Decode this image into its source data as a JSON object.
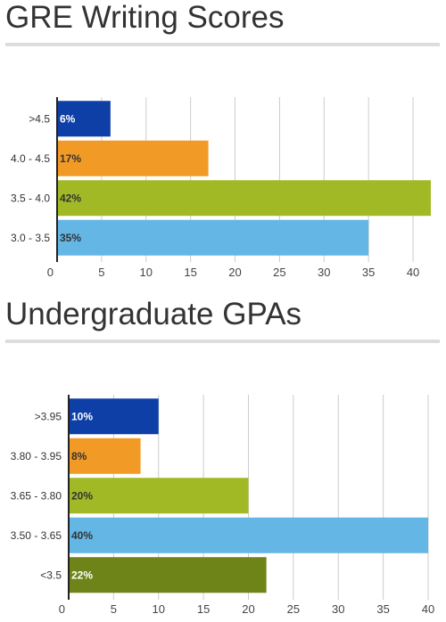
{
  "charts": [
    {
      "heading": "GRE Writing Scores",
      "chart_data": {
        "type": "bar",
        "orientation": "horizontal",
        "title": "GRE Writing Scores",
        "categories": [
          ">4.5",
          "4.0 - 4.5",
          "3.5 - 4.0",
          "3.0 - 3.5"
        ],
        "values": [
          6,
          17,
          42,
          35
        ],
        "data_labels": [
          "6%",
          "17%",
          "42%",
          "35%"
        ],
        "colors": [
          "#0d3fa6",
          "#f29a26",
          "#a2b926",
          "#64b6e5"
        ],
        "label_colors": [
          "#ffffff",
          "#333333",
          "#333333",
          "#333333"
        ],
        "xlim": [
          0,
          42
        ],
        "x_ticks": [
          0,
          5,
          10,
          15,
          20,
          25,
          30,
          35,
          40
        ],
        "grid": true
      }
    },
    {
      "heading": "Undergraduate GPAs",
      "chart_data": {
        "type": "bar",
        "orientation": "horizontal",
        "title": "Undergraduate GPAs",
        "categories": [
          ">3.95",
          "3.80 - 3.95",
          "3.65 - 3.80",
          "3.50 - 3.65",
          "<3.5"
        ],
        "values": [
          10,
          8,
          20,
          40,
          22
        ],
        "data_labels": [
          "10%",
          "8%",
          "20%",
          "40%",
          "22%"
        ],
        "colors": [
          "#0d3fa6",
          "#f29a26",
          "#a2b926",
          "#64b6e5",
          "#6e8418"
        ],
        "label_colors": [
          "#ffffff",
          "#333333",
          "#333333",
          "#333333",
          "#ffffff"
        ],
        "xlim": [
          0,
          40
        ],
        "x_ticks": [
          0,
          5,
          10,
          15,
          20,
          25,
          30,
          35,
          40
        ],
        "grid": true
      }
    }
  ]
}
